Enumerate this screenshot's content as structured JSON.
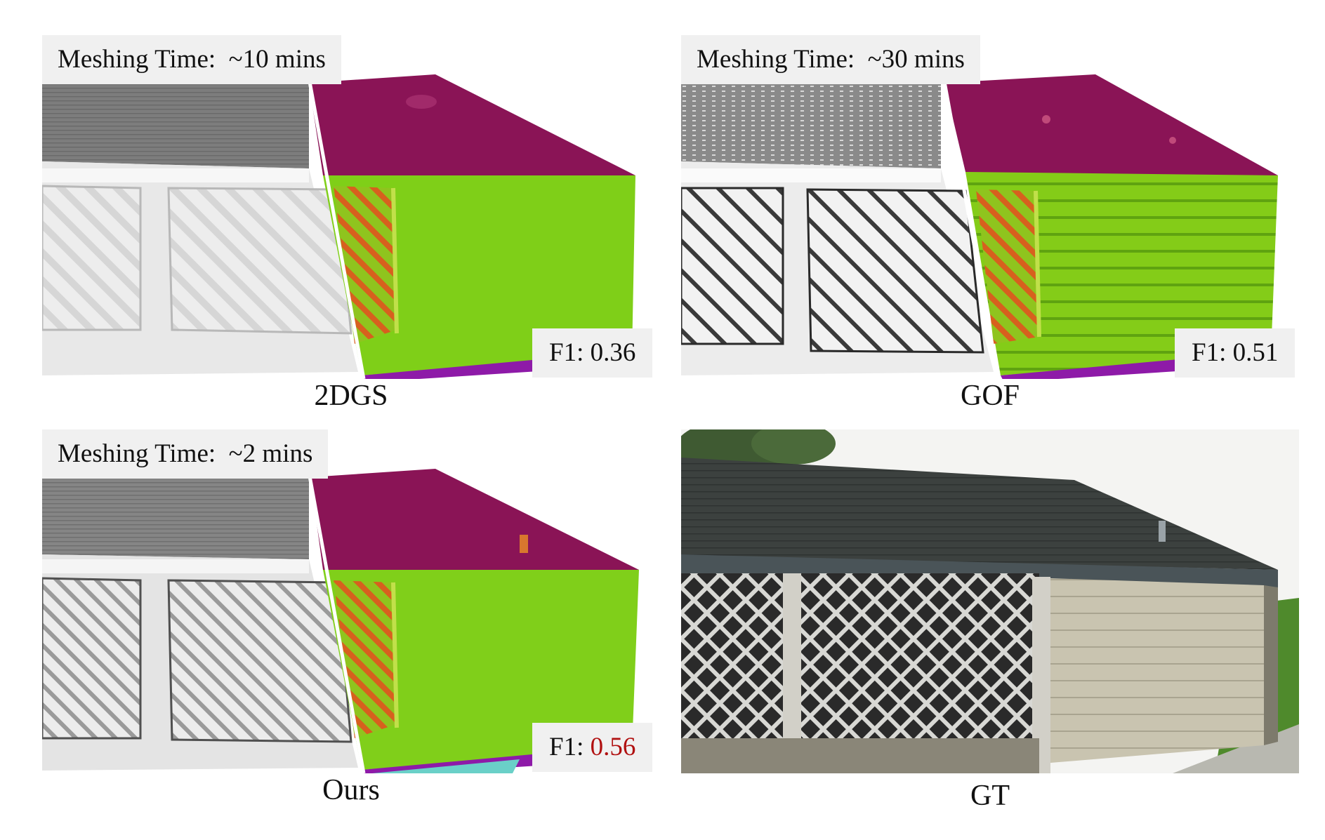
{
  "figure": {
    "panels": [
      {
        "id": "2dgs",
        "caption": "2DGS",
        "meshing_time_label": "Meshing Time:",
        "meshing_time_value": "~10 mins",
        "f1_label": "F1:",
        "f1_value": "0.36"
      },
      {
        "id": "gof",
        "caption": "GOF",
        "meshing_time_label": "Meshing Time:",
        "meshing_time_value": "~30 mins",
        "f1_label": "F1:",
        "f1_value": "0.51"
      },
      {
        "id": "ours",
        "caption": "Ours",
        "meshing_time_label": "Meshing Time:",
        "meshing_time_value": "~2 mins",
        "f1_label": "F1:",
        "f1_value": "0.56"
      },
      {
        "id": "gt",
        "caption": "GT"
      }
    ]
  },
  "colors": {
    "best_value": "#b01010",
    "label_box": "#f0f0f0",
    "normal_roof": "#8a1456",
    "normal_wall": "#7ccc14"
  }
}
